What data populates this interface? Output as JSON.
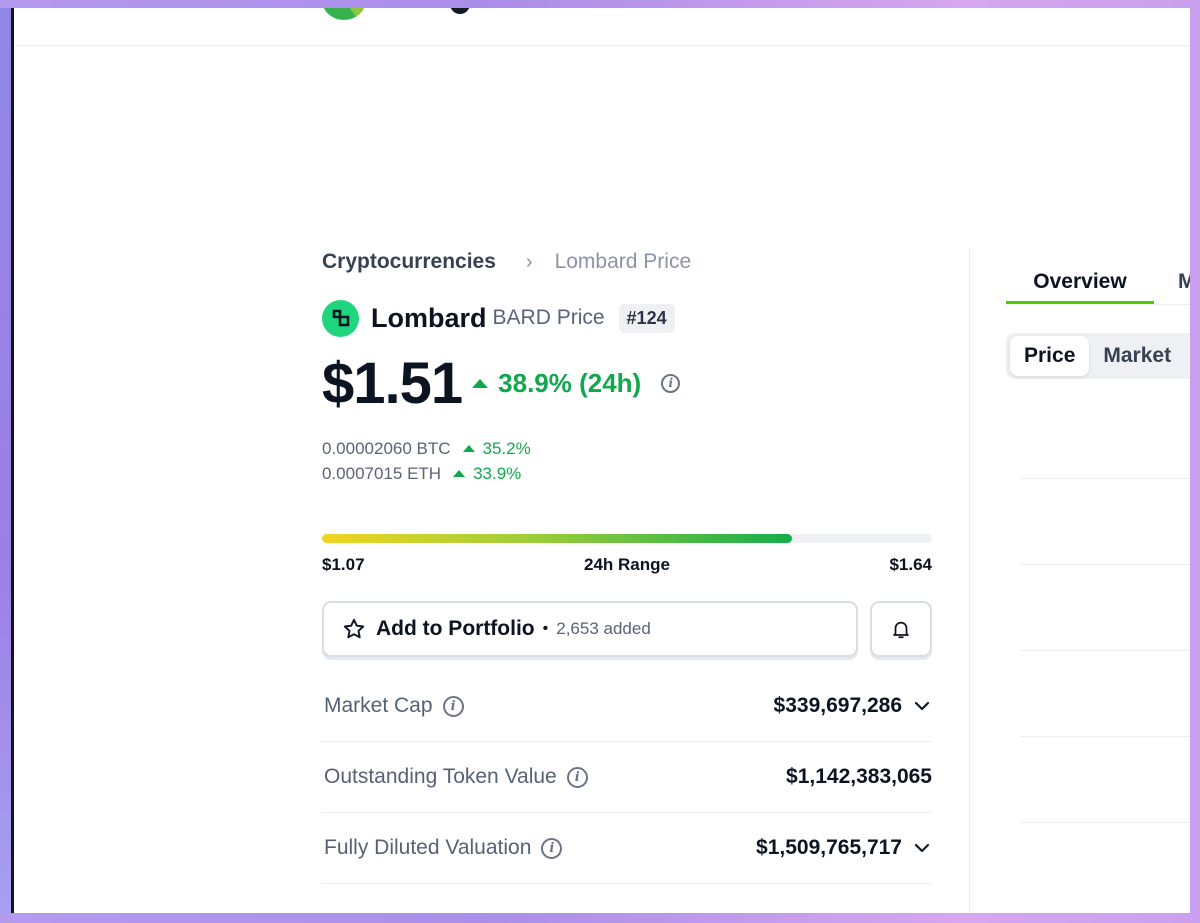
{
  "breadcrumb": {
    "root": "Cryptocurrencies",
    "current": "Lombard Price"
  },
  "coin": {
    "name": "Lombard",
    "symbol_label": "BARD Price",
    "rank": "#124"
  },
  "price": {
    "value": "$1.51",
    "change_24h": "38.9% (24h)"
  },
  "sub_prices": [
    {
      "value": "0.00002060 BTC",
      "change": "35.2%"
    },
    {
      "value": "0.0007015 ETH",
      "change": "33.9%"
    }
  ],
  "range_24h": {
    "low": "$1.07",
    "label": "24h Range",
    "high": "$1.64",
    "fill_fraction": 0.77
  },
  "portfolio": {
    "label": "Add to Portfolio",
    "dot": "•",
    "count": "2,653 added"
  },
  "stats": [
    {
      "label": "Market Cap",
      "value": "$339,697,286",
      "expandable": true
    },
    {
      "label": "Outstanding Token Value",
      "value": "$1,142,383,065",
      "expandable": false
    },
    {
      "label": "Fully Diluted Valuation",
      "value": "$1,509,765,717",
      "expandable": true
    }
  ],
  "right_panel": {
    "tabs": [
      {
        "label": "Overview"
      },
      {
        "label": "M"
      }
    ],
    "toggle": [
      {
        "label": "Price"
      },
      {
        "label": "Market"
      }
    ]
  },
  "colors": {
    "positive": "#10a84b",
    "coin_logo": "#1fd67f",
    "tab_accent": "#4bcc00"
  },
  "icons": {
    "info": "info-icon",
    "star": "star-icon",
    "bell": "bell-icon",
    "chevron": "chevron-down-icon"
  }
}
